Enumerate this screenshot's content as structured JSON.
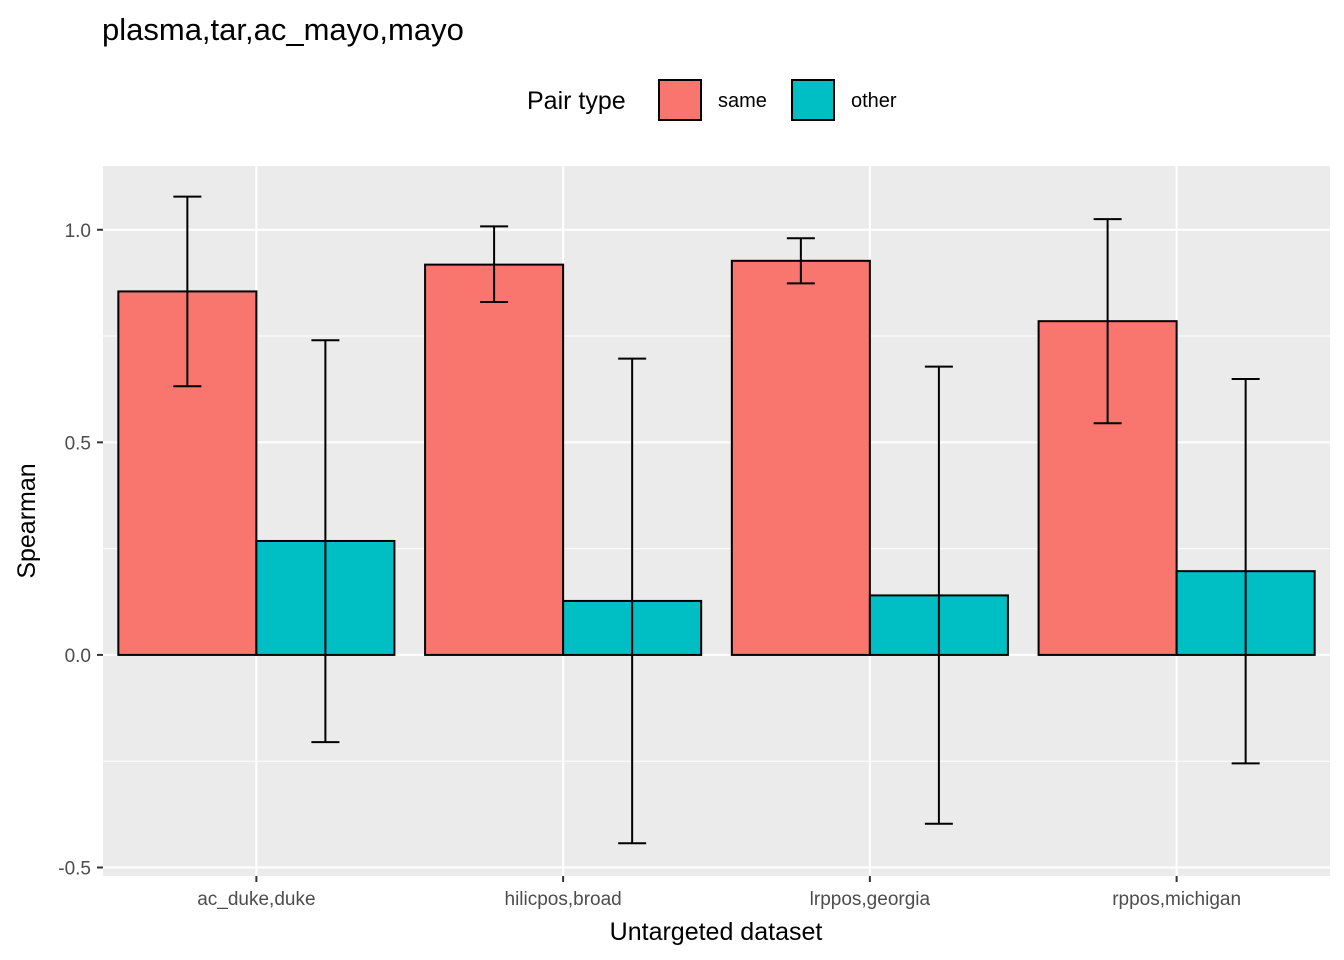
{
  "chart_data": {
    "type": "bar",
    "title": "plasma,tar,ac_mayo,mayo",
    "xlabel": "Untargeted dataset",
    "ylabel": "Spearman",
    "ylim": [
      -0.52,
      1.15
    ],
    "yticks": [
      -0.5,
      0.0,
      0.5,
      1.0
    ],
    "ytick_labels": [
      "-0.5",
      "0.0",
      "0.5",
      "1.0"
    ],
    "categories": [
      "ac_duke,duke",
      "hilicpos,broad",
      "lrppos,georgia",
      "rppos,michigan"
    ],
    "legend": {
      "title": "Pair type",
      "position": "top"
    },
    "grid": true,
    "series": [
      {
        "name": "same",
        "color": "#F8766D",
        "values": [
          0.855,
          0.918,
          0.927,
          0.785
        ],
        "error_low": [
          0.632,
          0.83,
          0.874,
          0.545
        ],
        "error_high": [
          1.078,
          1.008,
          0.98,
          1.025
        ]
      },
      {
        "name": "other",
        "color": "#00BFC4",
        "values": [
          0.268,
          0.127,
          0.14,
          0.197
        ],
        "error_low": [
          -0.205,
          -0.443,
          -0.397,
          -0.255
        ],
        "error_high": [
          0.74,
          0.697,
          0.678,
          0.649
        ]
      }
    ]
  }
}
